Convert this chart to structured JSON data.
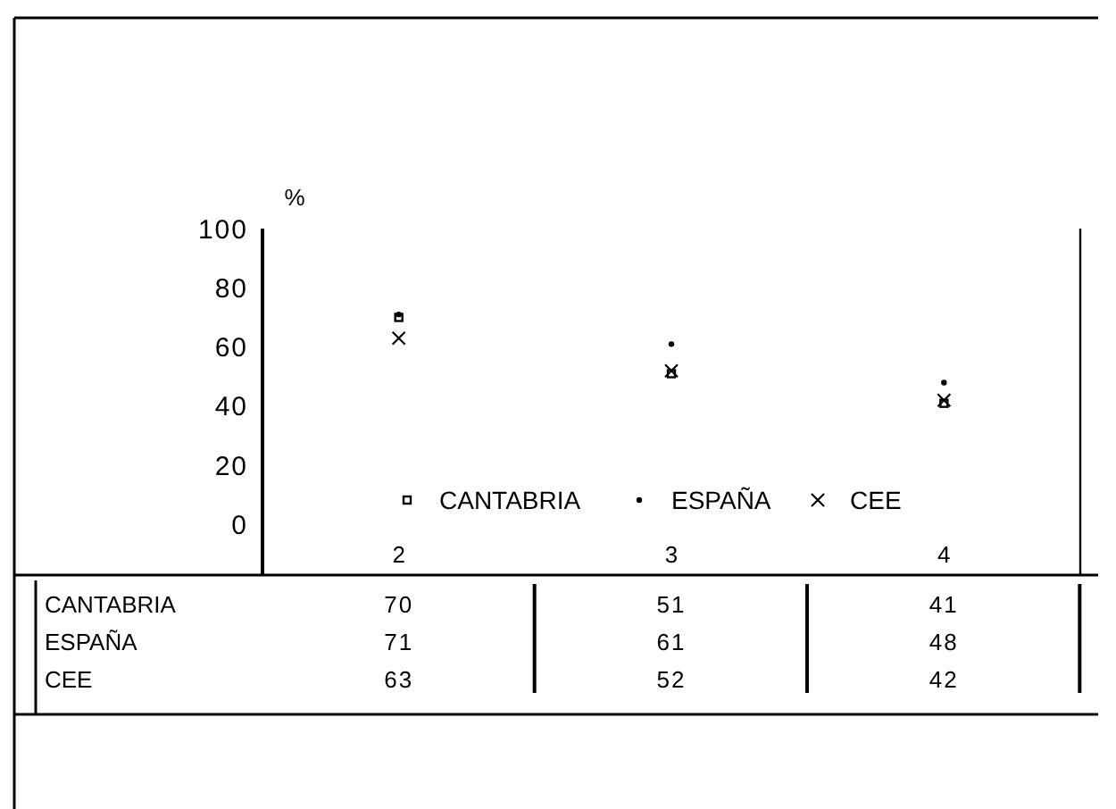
{
  "chart_data": {
    "type": "scatter",
    "ylabel": "%",
    "categories": [
      "2",
      "3",
      "4"
    ],
    "ylim": [
      -17,
      100
    ],
    "yticks": [
      0,
      20,
      40,
      60,
      80,
      100
    ],
    "legend": "bottom",
    "data_labels": true,
    "series": [
      {
        "name": "CANTABRIA",
        "color": "#000000",
        "marker": "square",
        "values": [
          70,
          51,
          41
        ]
      },
      {
        "name": "ESPAÑA",
        "color": "#000000",
        "marker": "circle",
        "values": [
          71,
          61,
          48
        ]
      },
      {
        "name": "CEE",
        "color": "#000000",
        "marker": "cross",
        "values": [
          63,
          52,
          42
        ]
      }
    ]
  }
}
